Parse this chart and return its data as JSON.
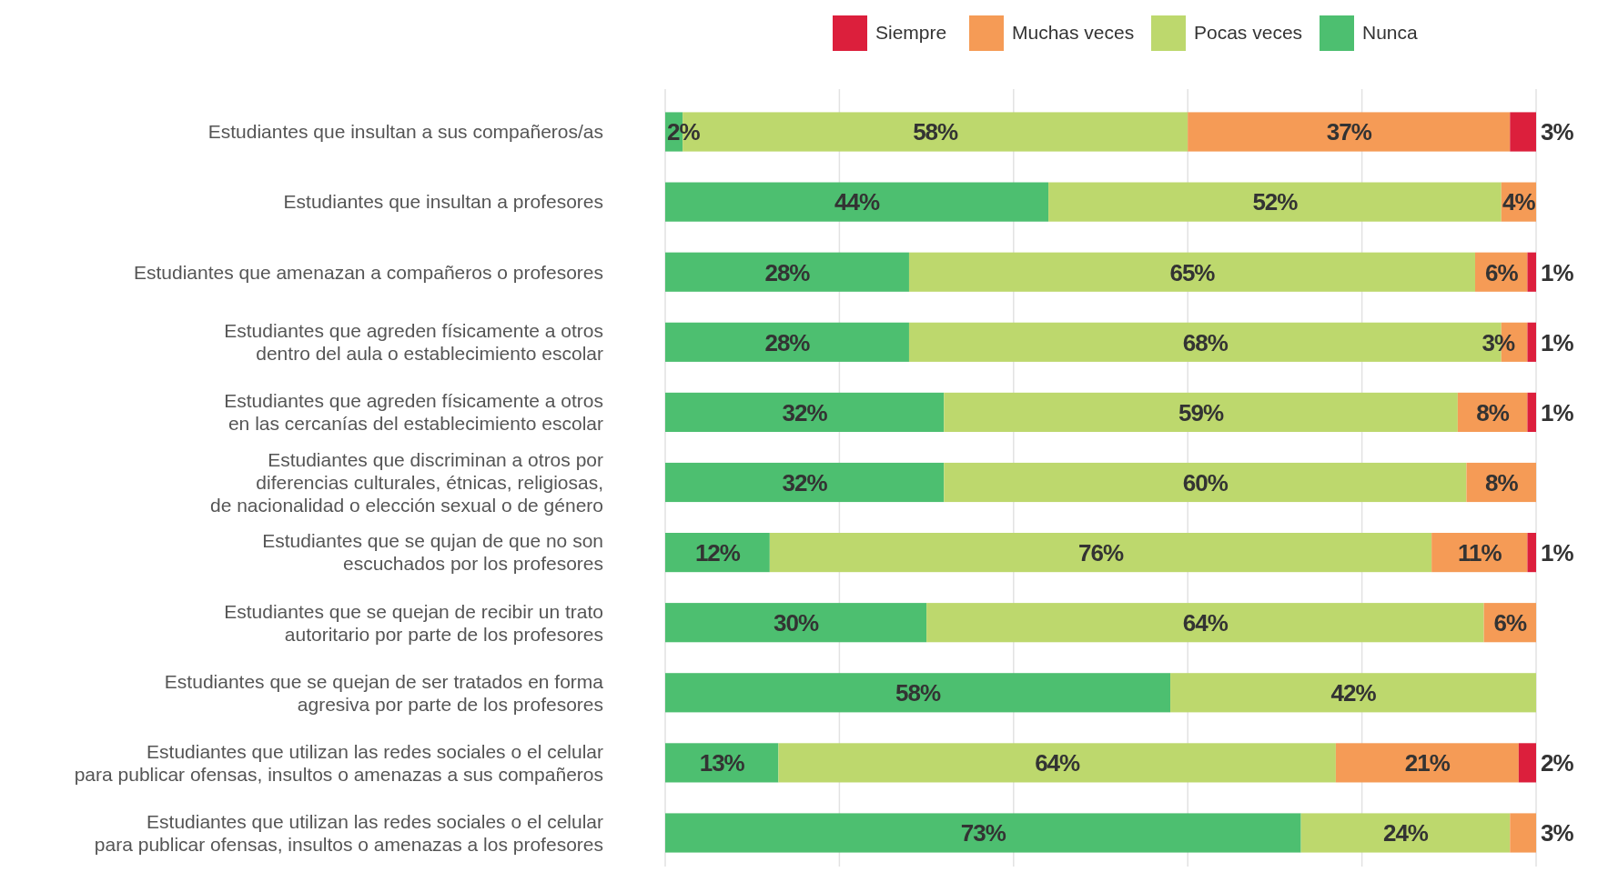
{
  "chart_data": {
    "type": "bar",
    "orientation": "horizontal",
    "stacked": true,
    "legend": "top",
    "grid": "x",
    "xlim": [
      0,
      100
    ],
    "xticks": [
      {
        "value": 0,
        "label": null
      },
      {
        "value": 20,
        "label": null
      },
      {
        "value": 40,
        "label": null
      },
      {
        "value": 60,
        "label": null
      },
      {
        "value": 80,
        "label": null
      },
      {
        "value": 100,
        "label": null
      }
    ],
    "categories": [
      "Estudiantes que insultan a sus compañeros/as",
      "Estudiantes que insultan a profesores",
      "Estudiantes que amenazan a compañeros o profesores",
      "Estudiantes que agreden físicamente a otros\ndentro del aula o establecimiento escolar",
      "Estudiantes que agreden físicamente a otros\nen las cercanías del establecimiento escolar",
      "Estudiantes que discriminan a otros por\ndiferencias culturales, étnicas, religiosas,\nde nacionalidad o elección sexual o de género",
      "Estudiantes que se qujan de que no son\nescuchados por los profesores",
      "Estudiantes que se quejan de recibir un trato\nautoritario por parte de los profesores",
      "Estudiantes que se quejan de ser tratados en forma\nagresiva por parte de los profesores",
      "Estudiantes que utilizan las redes sociales o el celular\npara publicar ofensas, insultos o amenazas a sus compañeros",
      "Estudiantes que utilizan las redes sociales o el celular\npara publicar ofensas, insultos o amenazas a los profesores"
    ],
    "series": [
      {
        "name": "Nunca",
        "color": "#4dbf70",
        "values": [
          2,
          44,
          28,
          28,
          32,
          32,
          12,
          30,
          58,
          13,
          73
        ],
        "value_labels": [
          "2%",
          "44%",
          "28%",
          "28%",
          "32%",
          "32%",
          "12%",
          "30%",
          "58%",
          "13%",
          "73%"
        ]
      },
      {
        "name": "Pocas veces",
        "color": "#bdd86d",
        "values": [
          58,
          52,
          65,
          68,
          59,
          60,
          76,
          64,
          42,
          64,
          24
        ],
        "value_labels": [
          "58%",
          "52%",
          "65%",
          "68%",
          "59%",
          "60%",
          "76%",
          "64%",
          "42%",
          "64%",
          "24%"
        ]
      },
      {
        "name": "Muchas veces",
        "color": "#f59b56",
        "values": [
          37,
          4,
          6,
          3,
          8,
          8,
          11,
          6,
          null,
          21,
          3
        ],
        "value_labels": [
          "37%",
          "4%",
          "6%",
          "3%",
          "8%",
          "8%",
          "11%",
          "6%",
          null,
          "21%",
          "3%"
        ]
      },
      {
        "name": "Siempre",
        "color": "#dc1f3c",
        "values": [
          3,
          null,
          1,
          1,
          1,
          null,
          1,
          null,
          null,
          2,
          null
        ],
        "value_labels": [
          "3%",
          null,
          "1%",
          "1%",
          "1%",
          null,
          "1%",
          null,
          null,
          "2%",
          null
        ]
      }
    ]
  }
}
